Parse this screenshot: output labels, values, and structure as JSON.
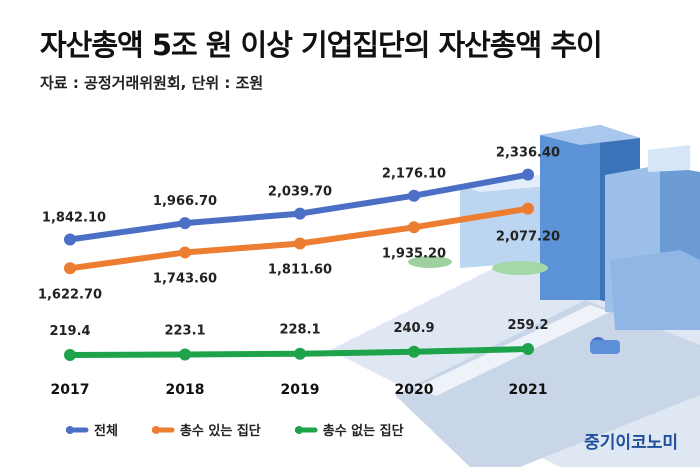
{
  "header": {
    "title": "자산총액 5조 원 이상 기업집단의 자산총액 추이",
    "source": "자료 : 공정거래위원회, 단위 : 조원"
  },
  "brand": "중기이코노미",
  "chart_data": {
    "type": "line",
    "title": "자산총액 5조 원 이상 기업집단의 자산총액 추이",
    "unit": "조원",
    "categories": [
      "2017",
      "2018",
      "2019",
      "2020",
      "2021"
    ],
    "series": [
      {
        "name": "전체",
        "color": "#4a6fc4",
        "values": [
          1842.1,
          1966.7,
          2039.7,
          2176.1,
          2336.4
        ],
        "labels": [
          "1,842.10",
          "1,966.70",
          "2,039.70",
          "2,176.10",
          "2,336.40"
        ]
      },
      {
        "name": "총수 있는 집단",
        "color": "#ed7d31",
        "values": [
          1622.7,
          1743.6,
          1811.6,
          1935.2,
          2077.2
        ],
        "labels": [
          "1,622.70",
          "1,743.60",
          "1,811.60",
          "1,935.20",
          "2,077.20"
        ]
      },
      {
        "name": "총수 없는 집단",
        "color": "#1fa34a",
        "values": [
          219.4,
          223.1,
          228.1,
          240.9,
          259.2
        ],
        "labels": [
          "219.4",
          "223.1",
          "228.1",
          "240.9",
          "259.2"
        ]
      }
    ],
    "grid": false,
    "legend_position": "bottom"
  }
}
